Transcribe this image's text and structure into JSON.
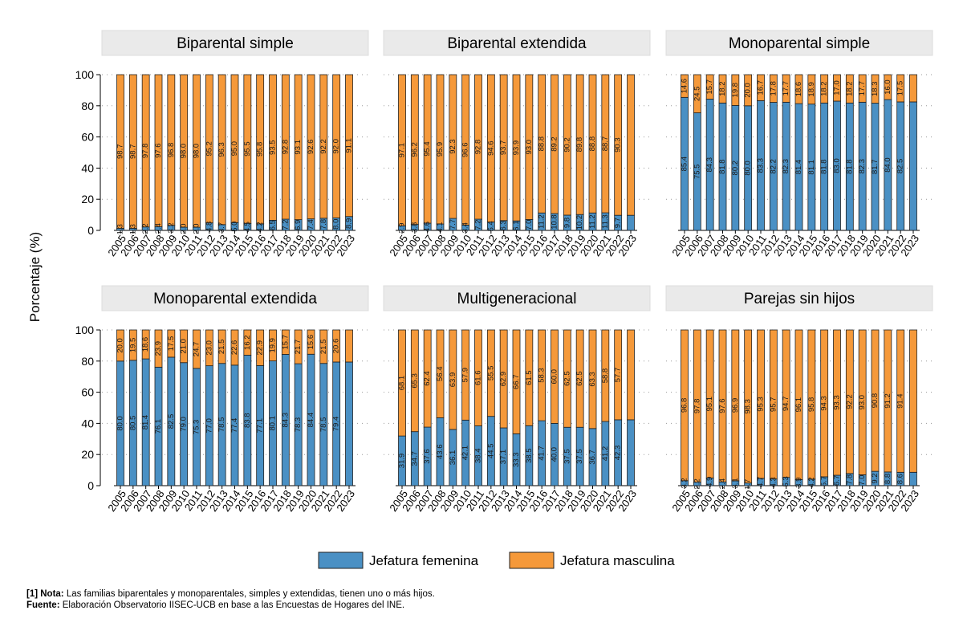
{
  "colors": {
    "female": "#4a90c4",
    "male": "#f5993a",
    "header_bg": "#eaeaea",
    "grid": "#9a9a9a"
  },
  "figure": {
    "ylabel": "Porcentaje (%)",
    "yticks": [
      "0",
      "20",
      "40",
      "60",
      "80",
      "100"
    ]
  },
  "legend": {
    "female": "Jefatura femenina",
    "male": "Jefatura masculina"
  },
  "notes": {
    "nota_label": "[1] Nota:",
    "nota_text": "Las familias biparentales y monoparentales, simples y extendidas, tienen uno o más hijos.",
    "fuente_label": "Fuente:",
    "fuente_text": "Elaboración Observatorio IISEC-UCB en base a las Encuestas de Hogares del INE."
  },
  "chart_data": {
    "type": "bar",
    "stacked": true,
    "ylim": [
      0,
      100
    ],
    "ylabel": "Porcentaje (%)",
    "categories": [
      "2005",
      "2006",
      "2007",
      "2008",
      "2009",
      "2010",
      "2011",
      "2012",
      "2013",
      "2014",
      "2015",
      "2016",
      "2017",
      "2018",
      "2019",
      "2020",
      "2021",
      "2022",
      "2023"
    ],
    "series_names": [
      "Jefatura femenina",
      "Jefatura masculina"
    ],
    "panels": [
      {
        "title": "Biparental simple",
        "female": [
          1.3,
          1.3,
          2.2,
          2.4,
          3.2,
          2.0,
          2.0,
          4.8,
          3.7,
          5.0,
          4.5,
          4.2,
          6.5,
          7.2,
          6.9,
          7.4,
          7.8,
          8.0,
          8.9
        ],
        "male": [
          98.7,
          98.7,
          97.8,
          97.6,
          96.8,
          98.0,
          98.0,
          95.2,
          96.3,
          95.0,
          95.5,
          95.8,
          93.5,
          92.8,
          93.1,
          92.6,
          92.2,
          92.0,
          91.1
        ],
        "female_labels": [
          "1.3",
          "1.3",
          "2.2",
          "2.4",
          "3.2",
          "2.0",
          "2.0",
          "4.8",
          "3.7",
          "5.0",
          "4.5",
          "4.2",
          "6.5",
          "7.2",
          "6.9",
          "7.4",
          "7.8",
          "8.0",
          "8.9"
        ],
        "male_labels": [
          "98.7",
          "98.7",
          "97.8",
          "97.6",
          "96.8",
          "98.0",
          "98.0",
          "95.2",
          "96.3",
          "95.0",
          "95.5",
          "95.8",
          "93.5",
          "92.8",
          "93.1",
          "92.6",
          "92.2",
          "92.0",
          "91.1"
        ]
      },
      {
        "title": "Biparental extendida",
        "female": [
          2.9,
          3.8,
          4.6,
          4.1,
          7.7,
          3.4,
          7.2,
          5.4,
          6.3,
          6.1,
          7.0,
          11.2,
          10.8,
          9.8,
          10.2,
          11.2,
          11.3,
          9.7,
          9.7
        ],
        "male": [
          97.1,
          96.2,
          95.4,
          95.9,
          92.3,
          96.6,
          92.8,
          94.6,
          93.7,
          93.9,
          93.0,
          88.8,
          89.2,
          90.2,
          89.8,
          88.8,
          88.7,
          90.3,
          90.3
        ],
        "female_labels": [
          "2.9",
          "3.8",
          "4.6",
          "4.1",
          "7.7",
          "3.4",
          "7.2",
          "5.4",
          "6.3",
          "6.1",
          "7.0",
          "11.2",
          "10.8",
          "9.8",
          "10.2",
          "11.2",
          "11.3",
          "9.7",
          ""
        ],
        "male_labels": [
          "97.1",
          "96.2",
          "95.4",
          "95.9",
          "92.3",
          "96.6",
          "92.8",
          "94.6",
          "93.7",
          "93.9",
          "93.0",
          "88.8",
          "89.2",
          "90.2",
          "89.8",
          "88.8",
          "88.7",
          "90.3",
          ""
        ]
      },
      {
        "title": "Monoparental simple",
        "female": [
          85.4,
          75.5,
          84.3,
          81.8,
          80.2,
          80.0,
          83.3,
          82.2,
          82.3,
          81.4,
          81.1,
          81.8,
          83.0,
          81.8,
          82.3,
          81.7,
          84.0,
          82.5,
          82.5
        ],
        "male": [
          14.6,
          24.5,
          15.7,
          18.2,
          19.8,
          20.0,
          16.7,
          17.8,
          17.7,
          18.6,
          18.9,
          18.2,
          17.0,
          18.2,
          17.7,
          18.3,
          16.0,
          17.5,
          17.5
        ],
        "female_labels": [
          "85.4",
          "75.5",
          "84.3",
          "81.8",
          "80.2",
          "80.0",
          "83.3",
          "82.2",
          "82.3",
          "81.4",
          "81.1",
          "81.8",
          "83.0",
          "81.8",
          "82.3",
          "81.7",
          "84.0",
          "82.5",
          ""
        ],
        "male_labels": [
          "14.6",
          "24.5",
          "15.7",
          "18.2",
          "19.8",
          "20.0",
          "16.7",
          "17.8",
          "17.7",
          "18.6",
          "18.9",
          "18.2",
          "17.0",
          "18.2",
          "17.7",
          "18.3",
          "16.0",
          "17.5",
          ""
        ]
      },
      {
        "title": "Monoparental extendida",
        "female": [
          80.0,
          80.5,
          81.4,
          76.1,
          82.5,
          79.0,
          75.3,
          77.0,
          78.5,
          77.4,
          83.8,
          77.1,
          80.1,
          84.3,
          78.3,
          84.4,
          78.5,
          79.4,
          79.4
        ],
        "male": [
          20.0,
          19.5,
          18.6,
          23.9,
          17.5,
          21.0,
          24.7,
          23.0,
          21.5,
          22.6,
          16.2,
          22.9,
          19.9,
          15.7,
          21.7,
          15.6,
          21.5,
          20.6,
          20.6
        ],
        "female_labels": [
          "80.0",
          "80.5",
          "81.4",
          "76.1",
          "82.5",
          "79.0",
          "75.3",
          "77.0",
          "78.5",
          "77.4",
          "83.8",
          "77.1",
          "80.1",
          "84.3",
          "78.3",
          "84.4",
          "78.5",
          "79.4",
          ""
        ],
        "male_labels": [
          "20.0",
          "19.5",
          "18.6",
          "23.9",
          "17.5",
          "21.0",
          "24.7",
          "23.0",
          "21.5",
          "22.6",
          "16.2",
          "22.9",
          "19.9",
          "15.7",
          "21.7",
          "15.6",
          "21.5",
          "20.6",
          ""
        ]
      },
      {
        "title": "Multigeneracional",
        "female": [
          31.9,
          34.7,
          37.6,
          43.6,
          36.1,
          42.1,
          38.4,
          44.5,
          37.1,
          33.3,
          38.5,
          41.7,
          40.0,
          37.5,
          37.5,
          36.7,
          41.2,
          42.3,
          42.3
        ],
        "male": [
          68.1,
          65.3,
          62.4,
          56.4,
          63.9,
          57.9,
          61.6,
          55.5,
          62.9,
          66.7,
          61.5,
          58.3,
          60.0,
          62.5,
          62.5,
          63.3,
          58.8,
          57.7,
          57.7
        ],
        "female_labels": [
          "31.9",
          "34.7",
          "37.6",
          "43.6",
          "36.1",
          "42.1",
          "38.4",
          "44.5",
          "37.1",
          "33.3",
          "38.5",
          "41.7",
          "40.0",
          "37.5",
          "37.5",
          "36.7",
          "41.2",
          "42.3",
          ""
        ],
        "male_labels": [
          "68.1",
          "65.3",
          "62.4",
          "56.4",
          "63.9",
          "57.9",
          "61.6",
          "55.5",
          "62.9",
          "66.7",
          "61.5",
          "58.3",
          "60.0",
          "62.5",
          "62.5",
          "63.3",
          "58.8",
          "57.7",
          ""
        ]
      },
      {
        "title": "Parejas sin hijos",
        "female": [
          3.2,
          2.2,
          4.9,
          2.4,
          3.1,
          1.7,
          4.7,
          4.3,
          5.3,
          3.9,
          4.2,
          5.7,
          6.7,
          7.8,
          7.0,
          9.2,
          8.8,
          8.6,
          8.6
        ],
        "male": [
          96.8,
          97.8,
          95.1,
          97.6,
          96.9,
          98.3,
          95.3,
          95.7,
          94.7,
          96.1,
          95.8,
          94.3,
          93.3,
          92.2,
          93.0,
          90.8,
          91.2,
          91.4,
          91.4
        ],
        "female_labels": [
          "3.2",
          "2.2",
          "4.9",
          "2.4",
          "3.1",
          "1.7",
          "4.7",
          "4.3",
          "5.3",
          "3.9",
          "4.2",
          "5.7",
          "6.7",
          "7.8",
          "7.0",
          "9.2",
          "8.8",
          "8.6",
          ""
        ],
        "male_labels": [
          "96.8",
          "97.8",
          "95.1",
          "97.6",
          "96.9",
          "98.3",
          "95.3",
          "95.7",
          "94.7",
          "96.1",
          "95.8",
          "94.3",
          "93.3",
          "92.2",
          "93.0",
          "90.8",
          "91.2",
          "91.4",
          ""
        ]
      }
    ]
  }
}
